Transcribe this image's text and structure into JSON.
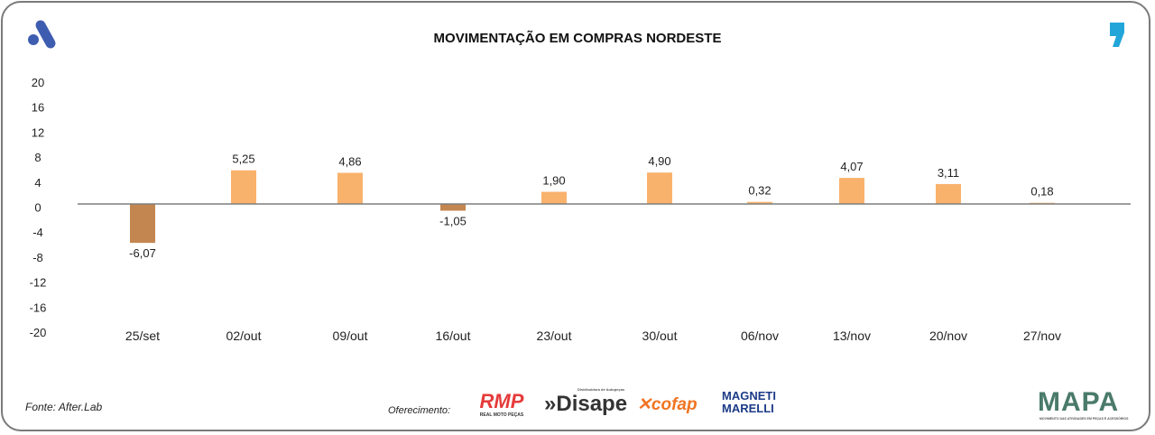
{
  "header": {
    "title": "MOVIMENTAÇÃO EM COMPRAS NORDESTE"
  },
  "footer": {
    "source": "Fonte: After.Lab",
    "sponsor_label": "Oferecimento:",
    "sponsors": [
      "RMP",
      "REAL MOTO PEÇAS",
      "Disape",
      "Distribuidora de Autopeças",
      "cofap",
      "MAGNETI",
      "MARELLI"
    ],
    "mapa": "MAPA",
    "mapa_sub": "MOVIMENTO DAS ATIVIDADES EM PEÇAS E ACESSÓRIOS"
  },
  "colors": {
    "positive": "#F9B26C",
    "negative": "#C48650",
    "axis": "#7f7f7f",
    "brand_blue": "#3F5DB0",
    "brand_cyan": "#22A6DA"
  },
  "chart_data": {
    "type": "bar",
    "title": "MOVIMENTAÇÃO EM COMPRAS NORDESTE",
    "categories": [
      "25/set",
      "02/out",
      "09/out",
      "16/out",
      "23/out",
      "30/out",
      "06/nov",
      "13/nov",
      "20/nov",
      "27/nov"
    ],
    "values": [
      -6.07,
      5.25,
      4.86,
      -1.05,
      1.9,
      4.9,
      0.32,
      4.07,
      3.11,
      0.18
    ],
    "labels": [
      "-6,07",
      "5,25",
      "4,86",
      "-1,05",
      "1,90",
      "4,90",
      "0,32",
      "4,07",
      "3,11",
      "0,18"
    ],
    "yticks": [
      "20",
      "16",
      "12",
      "8",
      "4",
      "0",
      "-4",
      "-8",
      "-12",
      "-16",
      "-20"
    ],
    "ylim": [
      -20,
      20
    ],
    "grid": false,
    "legend": "none",
    "xlabel": "",
    "ylabel": ""
  }
}
